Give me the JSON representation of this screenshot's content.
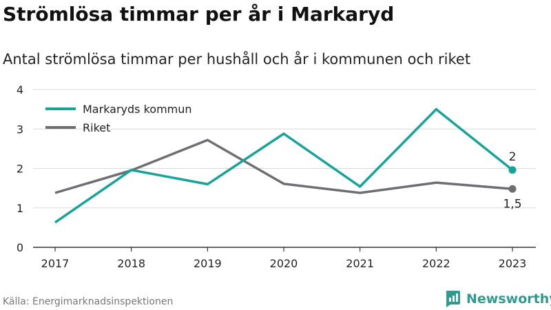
{
  "title": "Strömlösa timmar per år i Markaryd",
  "subtitle": "Antal strömlösa timmar per hushåll och år i kommunen och riket",
  "source": "Källa: Energimarknadsinspektionen",
  "brand": {
    "name": "Newsworthy",
    "icon": "newsworthy-logo-icon"
  },
  "colors": {
    "markaryd": "#17a398",
    "riket": "#6e6d71",
    "grid": "#d9d9d9",
    "axis": "#333333"
  },
  "chart_data": {
    "type": "line",
    "title": "Strömlösa timmar per år i Markaryd",
    "subtitle": "Antal strömlösa timmar per hushåll och år i kommunen och riket",
    "x": [
      "2017",
      "2018",
      "2019",
      "2020",
      "2021",
      "2022",
      "2023"
    ],
    "ylim": [
      0,
      4
    ],
    "yticks": [
      0,
      1,
      2,
      3,
      4
    ],
    "ytick_labels": [
      "0",
      "1",
      "2",
      "3",
      "4"
    ],
    "grid": true,
    "legend": "top-left",
    "series": [
      {
        "name": "Markaryds kommun",
        "color": "#17a398",
        "values": [
          0.63,
          1.96,
          1.6,
          2.88,
          1.54,
          3.5,
          1.96
        ],
        "end_label": "2"
      },
      {
        "name": "Riket",
        "color": "#6e6d71",
        "values": [
          1.38,
          1.95,
          2.72,
          1.61,
          1.38,
          1.64,
          1.48
        ],
        "end_label": "1,5"
      }
    ]
  }
}
